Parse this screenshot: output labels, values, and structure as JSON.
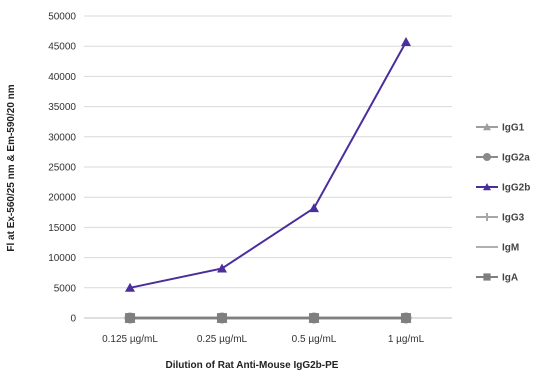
{
  "chart_data": {
    "type": "line",
    "title": "",
    "xlabel": "Dilution of Rat Anti-Mouse IgG2b-PE",
    "ylabel": "Fl at Ex-560/25 nm & Em-590/20 nm",
    "categories": [
      "0.125 µg/mL",
      "0.25 µg/mL",
      "0.5 µg/mL",
      "1 µg/mL"
    ],
    "ylim": [
      0,
      50000
    ],
    "yticks": [
      0,
      5000,
      10000,
      15000,
      20000,
      25000,
      30000,
      35000,
      40000,
      45000,
      50000
    ],
    "grid": true,
    "legend_position": "right",
    "series": [
      {
        "name": "IgG1",
        "values": [
          0,
          0,
          0,
          0
        ],
        "color": "#9e9e9e",
        "marker": "triangle"
      },
      {
        "name": "IgG2a",
        "values": [
          0,
          0,
          0,
          0
        ],
        "color": "#8a8a8a",
        "marker": "circle"
      },
      {
        "name": "IgG2b",
        "values": [
          5000,
          8200,
          18200,
          45700
        ],
        "color": "#4b2d9e",
        "marker": "triangle"
      },
      {
        "name": "IgG3",
        "values": [
          0,
          0,
          0,
          0
        ],
        "color": "#a6a6a6",
        "marker": "plus"
      },
      {
        "name": "IgM",
        "values": [
          0,
          0,
          0,
          0
        ],
        "color": "#b0b0b0",
        "marker": "none"
      },
      {
        "name": "IgA",
        "values": [
          0,
          0,
          0,
          0
        ],
        "color": "#7f7f7f",
        "marker": "square"
      }
    ]
  }
}
